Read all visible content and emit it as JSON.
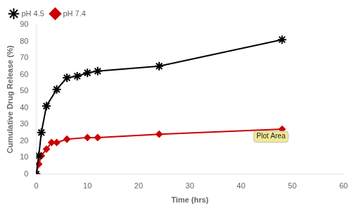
{
  "chart_data": {
    "type": "line",
    "xlabel": "Time (hrs)",
    "ylabel": "Cumulative Drug Release (%)",
    "series": [
      {
        "name": "pH 4.5",
        "color": "#000000",
        "marker": "star",
        "x": [
          0,
          0.5,
          1,
          2,
          4,
          6,
          8,
          10,
          12,
          24,
          48
        ],
        "values": [
          0,
          11,
          25,
          41,
          51,
          58,
          59,
          61,
          62,
          65,
          81
        ]
      },
      {
        "name": "pH 7.4",
        "color": "#cc0000",
        "marker": "diamond",
        "x": [
          0,
          0.5,
          1,
          2,
          3,
          4,
          6,
          10,
          12,
          24,
          48
        ],
        "values": [
          0,
          6,
          11,
          15,
          19,
          19,
          21,
          22,
          22,
          24,
          27
        ]
      }
    ],
    "xlim": [
      0,
      60
    ],
    "ylim": [
      0,
      90
    ],
    "xticks": [
      0,
      10,
      20,
      30,
      40,
      50,
      60
    ],
    "yticks": [
      0,
      10,
      20,
      30,
      40,
      50,
      60,
      70,
      80,
      90
    ],
    "grid": false,
    "legend": "upper left",
    "annotations": [
      {
        "text": "Plot Area",
        "x": 43,
        "y": 22.5
      }
    ]
  }
}
